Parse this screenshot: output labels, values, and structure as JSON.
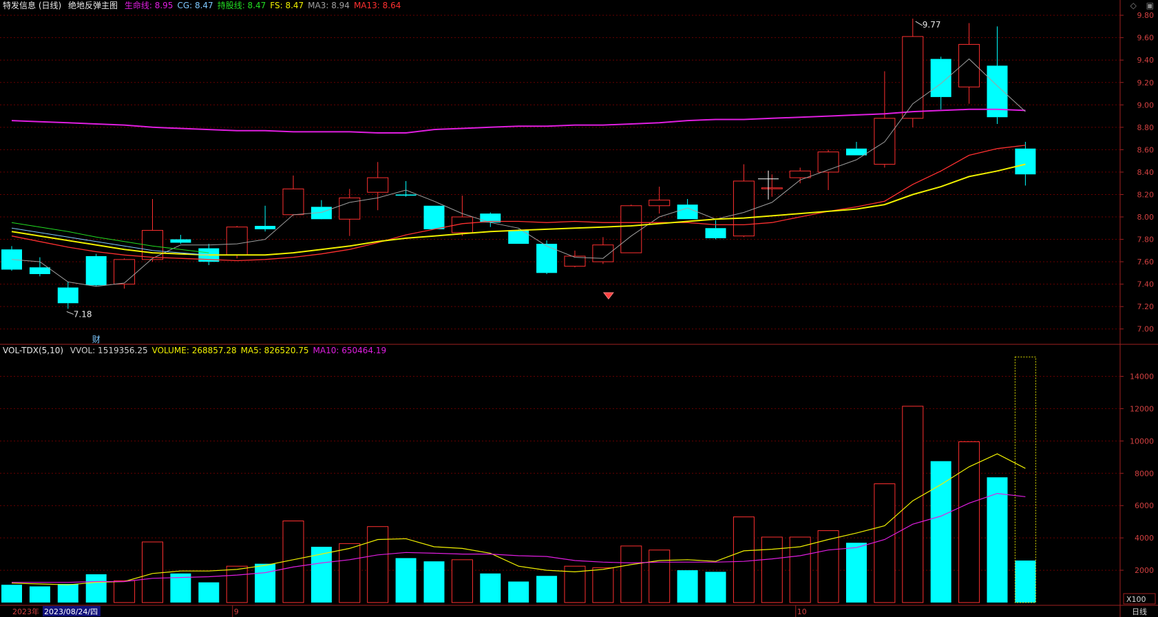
{
  "header": {
    "stock": "特发信息 (日线)",
    "indicator": "绝地反弹主图",
    "items": [
      {
        "label": "生命线: 8.95",
        "color": "#e01ee0"
      },
      {
        "label": "CG: 8.47",
        "color": "#7ec8ff"
      },
      {
        "label": "持股线: 8.47",
        "color": "#22dd22"
      },
      {
        "label": "FS: 8.47",
        "color": "#f0f000"
      },
      {
        "label": "MA3: 8.94",
        "color": "#a0a0a0"
      },
      {
        "label": "MA13: 8.64",
        "color": "#ff3030"
      }
    ],
    "right_icons": [
      "diamond-icon",
      "window-icon"
    ]
  },
  "vol_header": {
    "name": "VOL-TDX(5,10)",
    "items": [
      {
        "label": "VVOL: 1519356.25",
        "color": "#d0d0d0"
      },
      {
        "label": "VOLUME: 268857.28",
        "color": "#f0f000"
      },
      {
        "label": "MA5: 826520.75",
        "color": "#f0f000"
      },
      {
        "label": "MA10: 650464.19",
        "color": "#e01ee0"
      }
    ]
  },
  "bottom": {
    "year": "2023年",
    "date": "2023/08/24/四",
    "period": "日线",
    "unit": "X100",
    "month_marks": [
      "9",
      "10"
    ]
  },
  "annotations": {
    "high": "9.77",
    "low": "7.18",
    "fin_mark": "财"
  },
  "colors": {
    "up": "#ff3030",
    "down": "#00ffff",
    "grid": "#6a0000",
    "axis_text": "#d04040"
  },
  "chart_data": [
    {
      "type": "candlestick",
      "title": "",
      "ylim": [
        6.9,
        9.85
      ],
      "y_ticks": [
        7.0,
        7.2,
        7.4,
        7.6,
        7.8,
        8.0,
        8.2,
        8.4,
        8.6,
        8.8,
        9.0,
        9.2,
        9.4,
        9.6,
        9.8
      ],
      "ohlc": [
        [
          7.71,
          7.74,
          7.52,
          7.53
        ],
        [
          7.55,
          7.64,
          7.47,
          7.49
        ],
        [
          7.37,
          7.42,
          7.18,
          7.23
        ],
        [
          7.65,
          7.67,
          7.38,
          7.39
        ],
        [
          7.4,
          7.63,
          7.36,
          7.62
        ],
        [
          7.62,
          8.16,
          7.6,
          7.88
        ],
        [
          7.8,
          7.84,
          7.76,
          7.77
        ],
        [
          7.72,
          7.76,
          7.57,
          7.6
        ],
        [
          7.66,
          7.92,
          7.63,
          7.91
        ],
        [
          7.92,
          8.1,
          7.87,
          7.89
        ],
        [
          8.02,
          8.37,
          8.01,
          8.25
        ],
        [
          8.09,
          8.15,
          8.0,
          7.98
        ],
        [
          7.98,
          8.25,
          7.83,
          8.17
        ],
        [
          8.22,
          8.49,
          8.06,
          8.35
        ],
        [
          8.2,
          8.32,
          8.18,
          8.19
        ],
        [
          8.1,
          8.1,
          7.89,
          7.89
        ],
        [
          7.86,
          8.19,
          7.83,
          8.0
        ],
        [
          8.03,
          8.04,
          7.91,
          7.95
        ],
        [
          7.88,
          7.89,
          7.76,
          7.76
        ],
        [
          7.76,
          7.79,
          7.49,
          7.5
        ],
        [
          7.56,
          7.7,
          7.55,
          7.65
        ],
        [
          7.6,
          7.82,
          7.58,
          7.75
        ],
        [
          7.68,
          8.11,
          7.68,
          8.1
        ],
        [
          8.1,
          8.27,
          8.03,
          8.15
        ],
        [
          8.11,
          8.16,
          7.98,
          7.98
        ],
        [
          7.9,
          7.97,
          7.8,
          7.81
        ],
        [
          7.83,
          8.47,
          7.82,
          8.32
        ],
        [
          8.26,
          8.38,
          8.18,
          8.26
        ],
        [
          8.35,
          8.44,
          8.3,
          8.41
        ],
        [
          8.4,
          8.6,
          8.24,
          8.58
        ],
        [
          8.61,
          8.67,
          8.55,
          8.55
        ],
        [
          8.47,
          9.3,
          8.44,
          8.88
        ],
        [
          8.88,
          9.77,
          8.8,
          9.61
        ],
        [
          9.41,
          9.43,
          8.96,
          9.07
        ],
        [
          9.16,
          9.73,
          9.01,
          9.54
        ],
        [
          9.35,
          9.7,
          8.83,
          8.89
        ],
        [
          8.61,
          8.67,
          8.28,
          8.38
        ]
      ],
      "series": [
        {
          "name": "生命线",
          "color": "#e01ee0",
          "values": [
            8.86,
            8.85,
            8.84,
            8.83,
            8.82,
            8.8,
            8.79,
            8.78,
            8.77,
            8.77,
            8.76,
            8.76,
            8.76,
            8.75,
            8.75,
            8.78,
            8.79,
            8.8,
            8.81,
            8.81,
            8.82,
            8.82,
            8.83,
            8.84,
            8.86,
            8.87,
            8.87,
            8.88,
            8.89,
            8.9,
            8.91,
            8.92,
            8.94,
            8.95,
            8.96,
            8.96,
            8.95
          ]
        },
        {
          "name": "MA3",
          "color": "#a0a0a0",
          "values": [
            7.62,
            7.6,
            7.42,
            7.38,
            7.41,
            7.63,
            7.75,
            7.75,
            7.76,
            7.8,
            8.02,
            8.04,
            8.13,
            8.17,
            8.24,
            8.14,
            8.03,
            7.95,
            7.9,
            7.74,
            7.64,
            7.63,
            7.83,
            8.0,
            8.08,
            7.98,
            8.04,
            8.13,
            8.33,
            8.42,
            8.51,
            8.67,
            9.01,
            9.19,
            9.41,
            9.17,
            8.94
          ]
        },
        {
          "name": "MA13",
          "color": "#ff3030",
          "values": [
            7.83,
            7.78,
            7.73,
            7.69,
            7.66,
            7.64,
            7.63,
            7.62,
            7.61,
            7.62,
            7.64,
            7.67,
            7.71,
            7.77,
            7.84,
            7.89,
            7.94,
            7.96,
            7.96,
            7.95,
            7.96,
            7.95,
            7.95,
            7.95,
            7.95,
            7.93,
            7.93,
            7.95,
            8.0,
            8.05,
            8.09,
            8.14,
            8.29,
            8.41,
            8.55,
            8.61,
            8.64
          ]
        },
        {
          "name": "FS",
          "color": "#f0f000",
          "values": [
            7.87,
            7.83,
            7.79,
            7.75,
            7.71,
            7.68,
            7.67,
            7.66,
            7.66,
            7.66,
            7.68,
            7.71,
            7.74,
            7.78,
            7.81,
            7.83,
            7.85,
            7.87,
            7.88,
            7.89,
            7.9,
            7.91,
            7.92,
            7.94,
            7.96,
            7.98,
            7.99,
            8.01,
            8.03,
            8.05,
            8.07,
            8.11,
            8.2,
            8.27,
            8.36,
            8.41,
            8.47
          ]
        },
        {
          "name": "CG",
          "color": "#7ec8ff",
          "values": [
            7.9,
            7.86,
            7.82,
            7.78,
            7.74,
            7.7,
            7.68,
            7.66
          ]
        },
        {
          "name": "持股线",
          "color": "#22dd22",
          "values": [
            7.95,
            7.91,
            7.87,
            7.82,
            7.78,
            7.74,
            7.71,
            7.68
          ]
        }
      ]
    },
    {
      "type": "bar",
      "title": "",
      "unit": "X100",
      "ylim": [
        0,
        15300
      ],
      "y_ticks": [
        2000,
        4000,
        6000,
        8000,
        10000,
        12000,
        14000
      ],
      "volumes": [
        1100,
        1000,
        1150,
        1750,
        1350,
        3750,
        1800,
        1250,
        2250,
        2400,
        5050,
        3450,
        3650,
        4700,
        2750,
        2550,
        2650,
        1800,
        1300,
        1650,
        2250,
        2150,
        3500,
        3250,
        2000,
        1900,
        5300,
        4050,
        4050,
        4450,
        3700,
        7350,
        12150,
        8750,
        9950,
        7750,
        2600
      ],
      "up": [
        false,
        false,
        false,
        false,
        true,
        true,
        false,
        false,
        true,
        false,
        true,
        false,
        true,
        true,
        false,
        false,
        true,
        false,
        false,
        false,
        true,
        true,
        true,
        true,
        false,
        false,
        true,
        true,
        true,
        true,
        false,
        true,
        true,
        false,
        true,
        false,
        false
      ],
      "vvol_last": 15200,
      "series": [
        {
          "name": "MA5",
          "color": "#f0f000",
          "values": [
            1200,
            1150,
            1100,
            1250,
            1300,
            1800,
            1950,
            1950,
            2050,
            2300,
            2650,
            3000,
            3350,
            3900,
            3950,
            3450,
            3350,
            3050,
            2250,
            2000,
            1900,
            2050,
            2350,
            2600,
            2650,
            2550,
            3200,
            3300,
            3450,
            3900,
            4300,
            4750,
            6300,
            7300,
            8400,
            9200,
            8300
          ]
        },
        {
          "name": "MA10",
          "color": "#e01ee0",
          "values": [
            1250,
            1250,
            1250,
            1300,
            1300,
            1500,
            1550,
            1600,
            1700,
            1850,
            2200,
            2450,
            2650,
            2950,
            3100,
            3050,
            3000,
            3000,
            2900,
            2850,
            2600,
            2500,
            2450,
            2500,
            2500,
            2500,
            2550,
            2700,
            2900,
            3250,
            3400,
            3900,
            4850,
            5350,
            6150,
            6750,
            6550
          ]
        }
      ]
    }
  ]
}
